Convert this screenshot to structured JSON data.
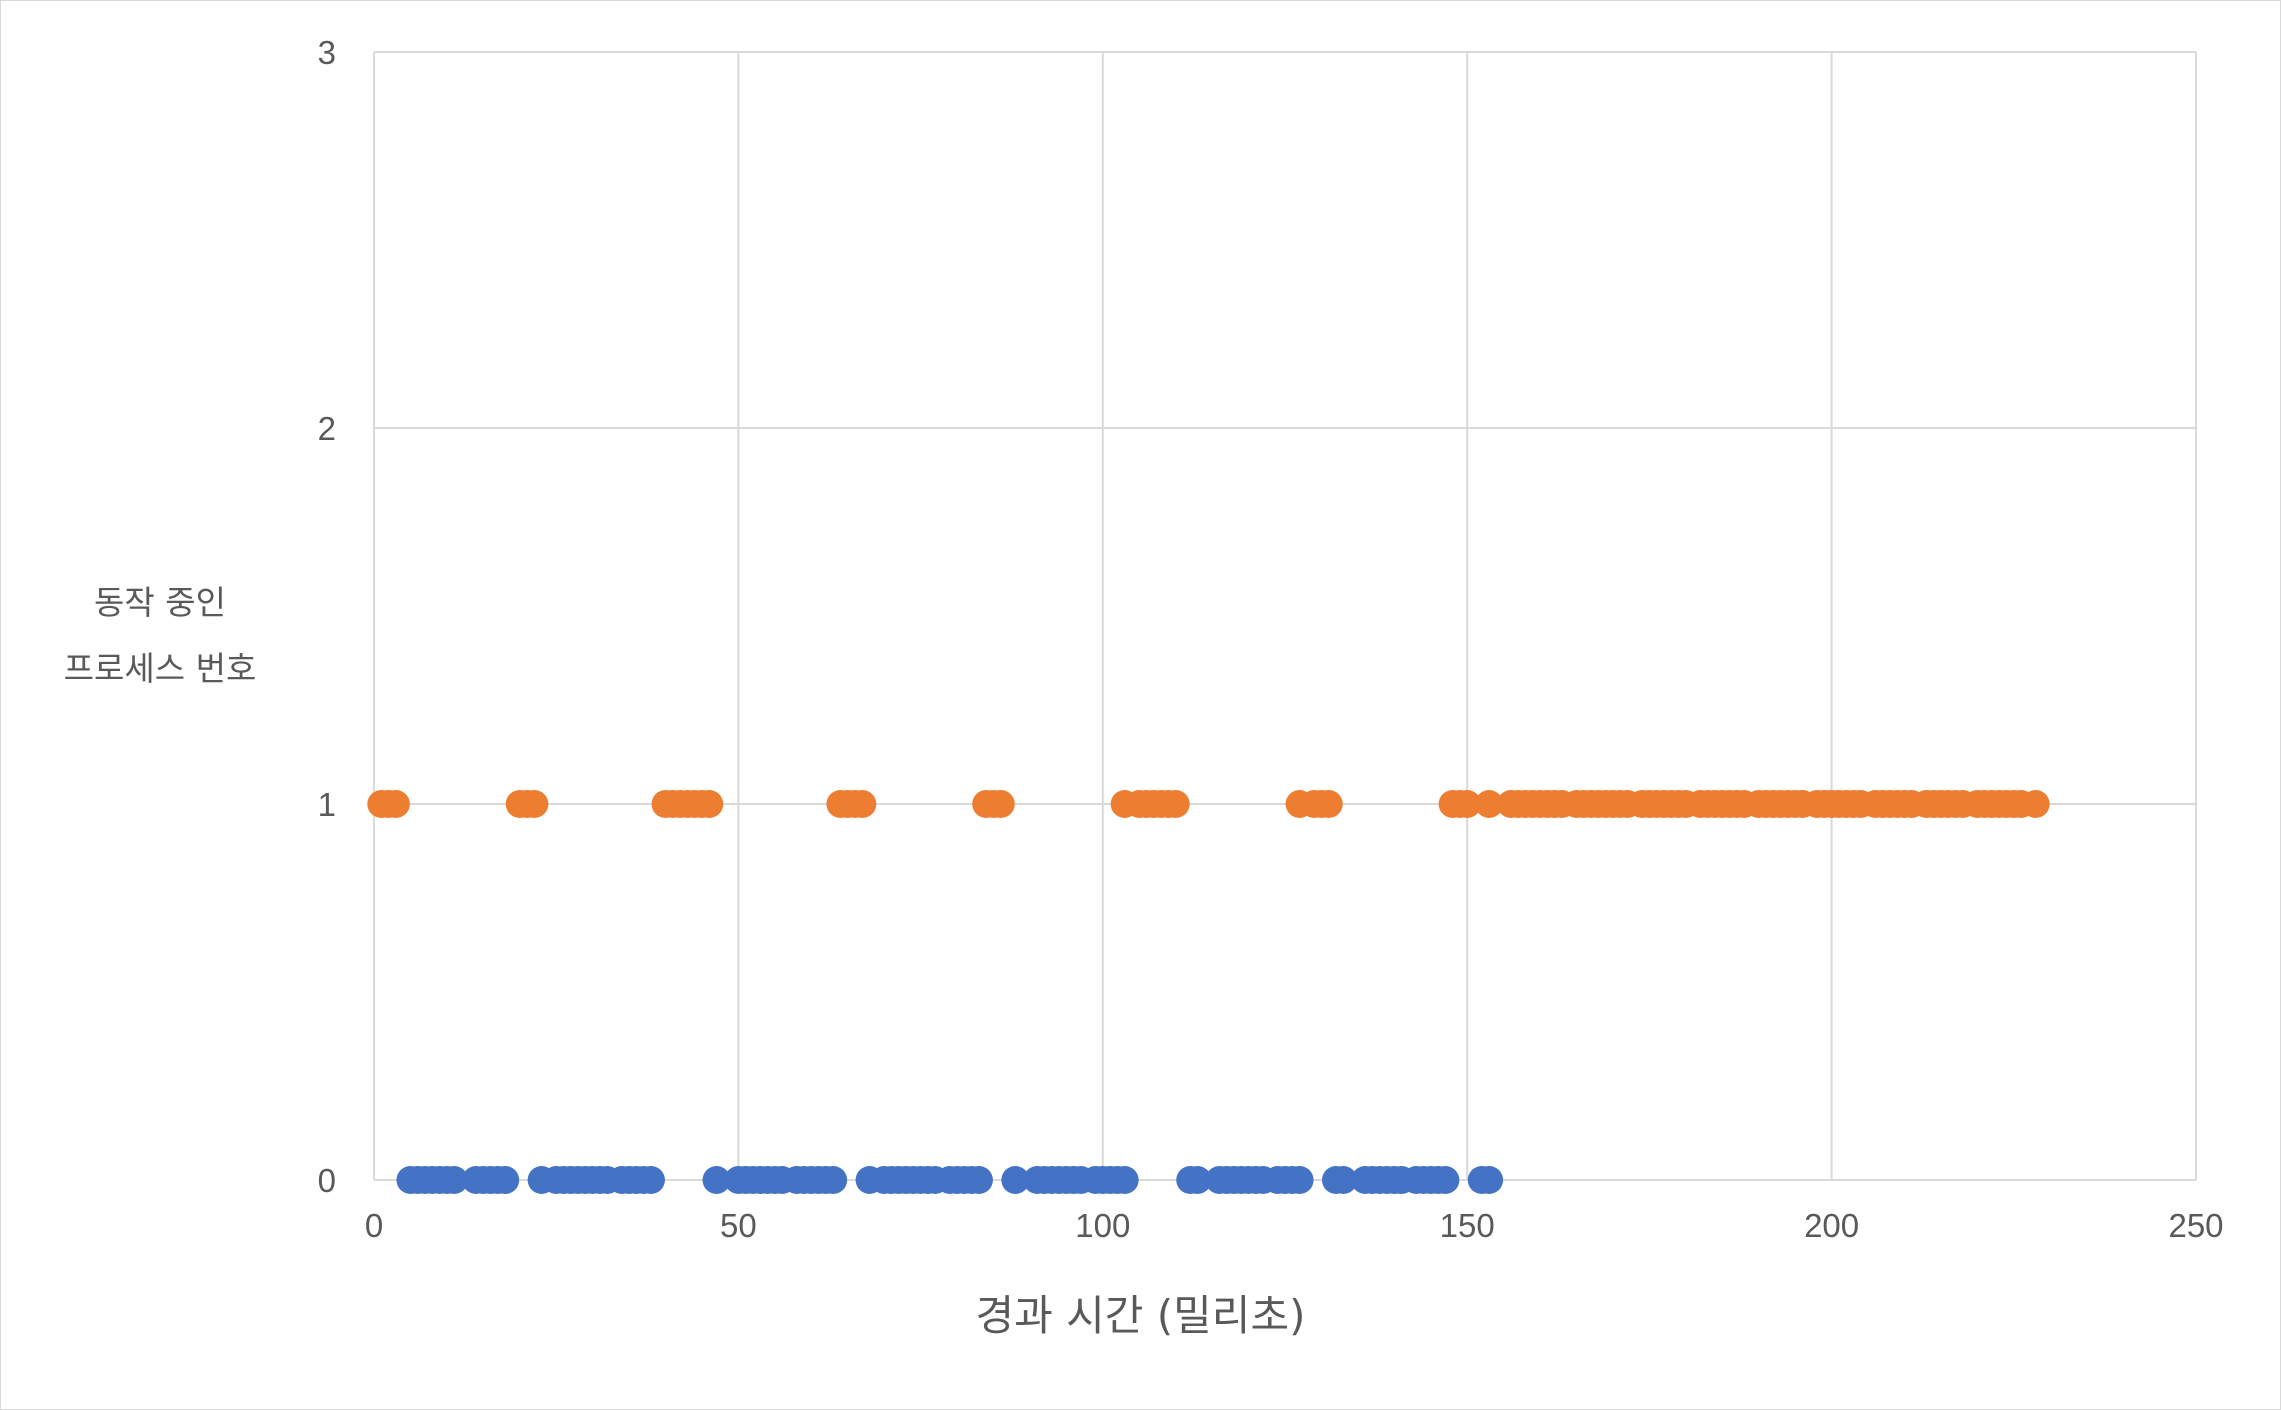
{
  "chart_data": {
    "type": "scatter",
    "title": "",
    "xlabel": "경과 시간 (밀리초)",
    "ylabel_lines": [
      "동작 중인",
      "프로세스 번호"
    ],
    "xlim": [
      0,
      250
    ],
    "ylim": [
      0,
      3
    ],
    "x_ticks": [
      "0",
      "50",
      "100",
      "150",
      "200",
      "250"
    ],
    "y_ticks": [
      "0",
      "1",
      "2",
      "3"
    ],
    "grid": true,
    "legend": "none",
    "series": [
      {
        "color": "#4472c4",
        "y": 0,
        "x": [
          5,
          6,
          7,
          8,
          9,
          10,
          11,
          14,
          15,
          16,
          17,
          18,
          23,
          25,
          26,
          27,
          28,
          29,
          30,
          31,
          32,
          34,
          35,
          36,
          37,
          38,
          47,
          50,
          51,
          52,
          53,
          54,
          55,
          56,
          58,
          59,
          60,
          61,
          62,
          63,
          68,
          70,
          71,
          72,
          73,
          74,
          75,
          76,
          77,
          79,
          80,
          81,
          82,
          83,
          88,
          91,
          92,
          93,
          94,
          95,
          96,
          97,
          99,
          100,
          101,
          102,
          103,
          112,
          113,
          116,
          117,
          118,
          119,
          120,
          121,
          122,
          124,
          125,
          126,
          127,
          132,
          133,
          136,
          137,
          138,
          139,
          140,
          141,
          143,
          144,
          145,
          146,
          147,
          152,
          153
        ]
      },
      {
        "color": "#ed7d31",
        "y": 1,
        "x": [
          1,
          2,
          3,
          20,
          21,
          22,
          40,
          41,
          42,
          43,
          44,
          45,
          46,
          64,
          65,
          66,
          67,
          84,
          85,
          86,
          103,
          105,
          106,
          107,
          108,
          109,
          110,
          127,
          129,
          130,
          131,
          148,
          149,
          150,
          153,
          156,
          157,
          158,
          159,
          160,
          161,
          162,
          163,
          165,
          166,
          167,
          168,
          169,
          170,
          171,
          172,
          174,
          175,
          176,
          177,
          178,
          179,
          180,
          182,
          183,
          184,
          185,
          186,
          187,
          188,
          190,
          191,
          192,
          193,
          194,
          195,
          196,
          198,
          199,
          200,
          201,
          202,
          203,
          204,
          206,
          207,
          208,
          209,
          210,
          211,
          213,
          214,
          215,
          216,
          217,
          218,
          220,
          221,
          222,
          223,
          224,
          225,
          226,
          228
        ]
      }
    ]
  }
}
